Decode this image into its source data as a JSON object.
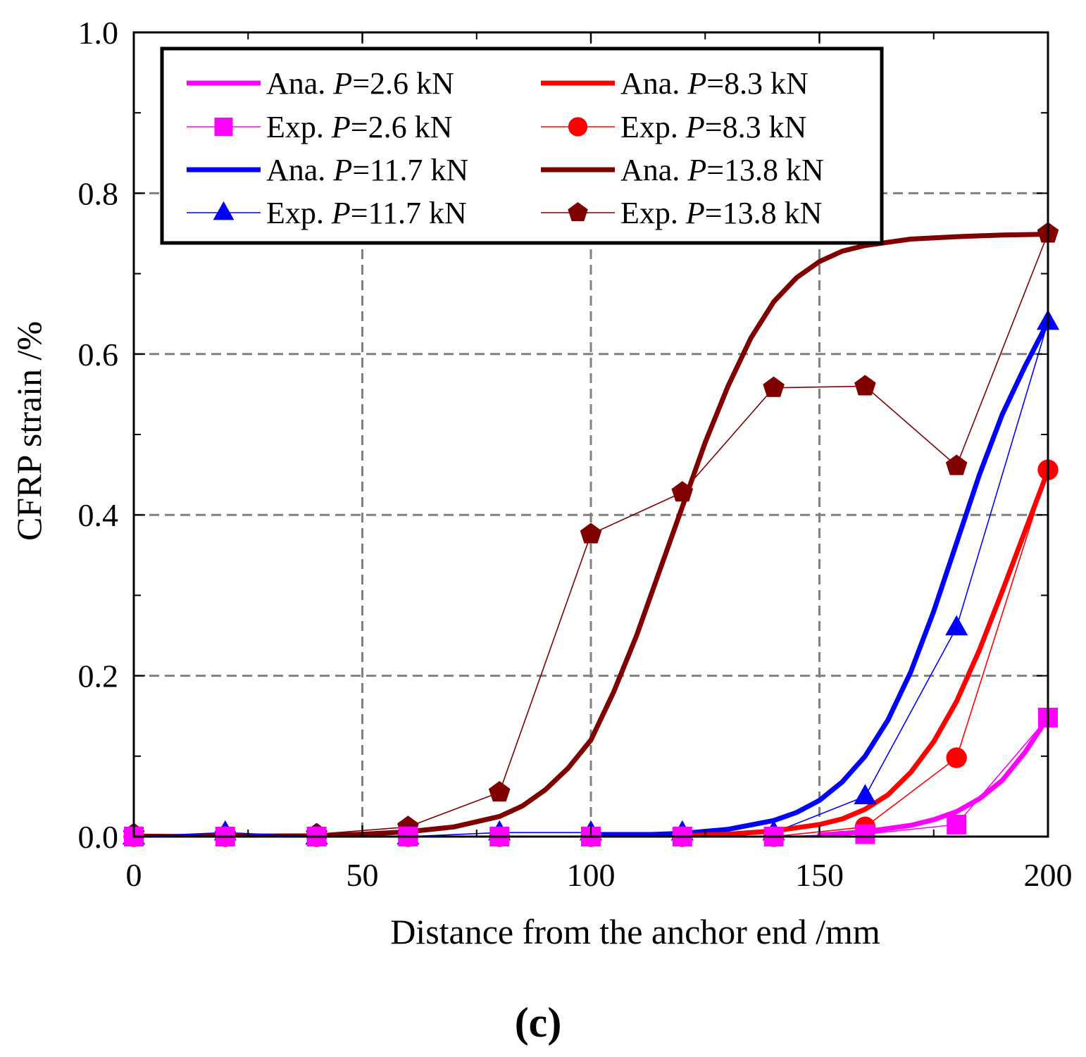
{
  "chart_data": {
    "type": "line",
    "title": "",
    "xlabel": "Distance from the anchor end /mm",
    "ylabel": "CFRP strain /%",
    "xlim": [
      0,
      200
    ],
    "ylim": [
      0,
      1.0
    ],
    "xticks": [
      0,
      50,
      100,
      150,
      200
    ],
    "xtick_labels": [
      "0",
      "50",
      "100",
      "150",
      "200"
    ],
    "yticks": [
      0,
      0.2,
      0.4,
      0.6,
      0.8,
      1.0
    ],
    "ytick_labels": [
      "0.0",
      "0.2",
      "0.4",
      "0.6",
      "0.8",
      "1.0"
    ],
    "grid": "dashed (x at 50, 100, 150; y at 0.2, 0.4, 0.6, 0.8)",
    "legend_position": "top-left",
    "panel_label": "(c)",
    "series": [
      {
        "name": "Ana. P=2.6 kN",
        "label_prefix": "Ana. ",
        "label_var": "P",
        "label_suffix": "=2.6 kN",
        "kind": "analytical",
        "color": "#ff00ff",
        "x": [
          150,
          160,
          170,
          175,
          180,
          185,
          190,
          195,
          200
        ],
        "y": [
          0.002,
          0.006,
          0.014,
          0.021,
          0.031,
          0.047,
          0.07,
          0.105,
          0.148
        ]
      },
      {
        "name": "Exp.  P=2.6 kN",
        "label_prefix": "Exp.  ",
        "label_var": "P",
        "label_suffix": "=2.6 kN",
        "kind": "experimental",
        "marker": "square",
        "color": "#ff00ff",
        "x": [
          0,
          20,
          40,
          60,
          80,
          100,
          120,
          140,
          160,
          180,
          200
        ],
        "y": [
          0,
          0,
          0,
          0,
          0,
          0,
          0,
          0,
          0.003,
          0.015,
          0.148
        ]
      },
      {
        "name": "Ana. P=8.3 kN",
        "label_prefix": "Ana. ",
        "label_var": "P",
        "label_suffix": "=8.3 kN",
        "kind": "analytical",
        "color": "#ff0000",
        "x": [
          120,
          130,
          140,
          150,
          155,
          160,
          165,
          170,
          175,
          180,
          185,
          190,
          195,
          200
        ],
        "y": [
          0.001,
          0.003,
          0.007,
          0.015,
          0.022,
          0.034,
          0.052,
          0.08,
          0.118,
          0.168,
          0.232,
          0.305,
          0.38,
          0.455
        ]
      },
      {
        "name": "Exp. P=8.3 kN",
        "label_prefix": "Exp. ",
        "label_var": "P",
        "label_suffix": "=8.3 kN",
        "kind": "experimental",
        "marker": "circle",
        "color": "#ff0000",
        "x": [
          0,
          20,
          40,
          60,
          80,
          100,
          120,
          140,
          160,
          180,
          200
        ],
        "y": [
          0,
          0,
          0,
          0,
          0,
          0,
          0,
          0,
          0.012,
          0.098,
          0.456
        ]
      },
      {
        "name": "Ana. P=11.7 kN",
        "label_prefix": "Ana. ",
        "label_var": "P",
        "label_suffix": "=11.7 kN",
        "kind": "analytical",
        "color": "#0000ff",
        "x": [
          100,
          110,
          120,
          130,
          140,
          145,
          150,
          155,
          160,
          165,
          170,
          175,
          180,
          185,
          190,
          195,
          200
        ],
        "y": [
          0.001,
          0.002,
          0.004,
          0.009,
          0.02,
          0.03,
          0.045,
          0.068,
          0.1,
          0.145,
          0.205,
          0.28,
          0.365,
          0.45,
          0.525,
          0.585,
          0.64
        ]
      },
      {
        "name": "Exp. P=11.7 kN",
        "label_prefix": "Exp. ",
        "label_var": "P",
        "label_suffix": "=11.7 kN",
        "kind": "experimental",
        "marker": "triangle",
        "color": "#0000ff",
        "x": [
          0,
          20,
          40,
          60,
          80,
          100,
          120,
          140,
          160,
          180,
          200
        ],
        "y": [
          0,
          0.005,
          0,
          0,
          0.005,
          0.005,
          0.005,
          0.005,
          0.05,
          0.26,
          0.64
        ]
      },
      {
        "name": "Ana. P=13.8 kN",
        "label_prefix": "Ana. ",
        "label_var": "P",
        "label_suffix": "=13.8 kN",
        "kind": "analytical",
        "color": "#800000",
        "x": [
          0,
          40,
          50,
          60,
          70,
          80,
          85,
          90,
          95,
          100,
          105,
          110,
          115,
          120,
          125,
          130,
          135,
          140,
          145,
          150,
          155,
          160,
          170,
          180,
          190,
          200
        ],
        "y": [
          0,
          0.001,
          0.003,
          0.006,
          0.012,
          0.025,
          0.038,
          0.058,
          0.085,
          0.12,
          0.18,
          0.25,
          0.33,
          0.41,
          0.49,
          0.56,
          0.62,
          0.665,
          0.695,
          0.715,
          0.728,
          0.735,
          0.743,
          0.746,
          0.748,
          0.749
        ]
      },
      {
        "name": "Exp. P=13.8 kN",
        "label_prefix": "Exp. ",
        "label_var": "P",
        "label_suffix": "=13.8 kN",
        "kind": "experimental",
        "marker": "pentagon",
        "color": "#800000",
        "x": [
          0,
          20,
          40,
          60,
          80,
          100,
          120,
          140,
          160,
          180,
          200
        ],
        "y": [
          0.003,
          0.002,
          0.003,
          0.012,
          0.055,
          0.376,
          0.428,
          0.558,
          0.56,
          0.461,
          0.75
        ]
      }
    ]
  }
}
